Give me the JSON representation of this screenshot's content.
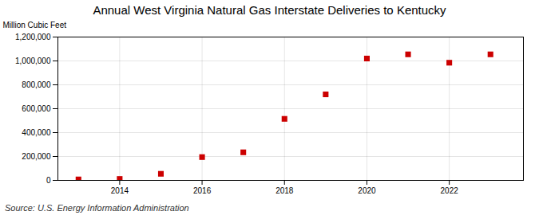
{
  "chart_data": {
    "type": "scatter",
    "title": "Annual West Virginia Natural Gas Interstate Deliveries to Kentucky",
    "ylabel": "Million Cubic Feet",
    "annotation": "Source: U.S. Energy Information Administration",
    "x": [
      2013,
      2014,
      2015,
      2016,
      2017,
      2018,
      2019,
      2020,
      2021,
      2022,
      2023
    ],
    "values": [
      8000,
      12000,
      55000,
      195000,
      235000,
      515000,
      720000,
      1020000,
      1055000,
      985000,
      1055000
    ],
    "color": "#cc0000",
    "marker": "square",
    "xlim": [
      2012.5,
      2023.8
    ],
    "xticks": [
      2014,
      2016,
      2018,
      2020,
      2022
    ],
    "ylim": [
      0,
      1200000
    ],
    "yticks": [
      0,
      {
        "value": 200000,
        "label": "200,000"
      },
      {
        "value": 400000,
        "label": "400,000"
      },
      {
        "value": 600000,
        "label": "600,000"
      },
      {
        "value": 800000,
        "label": "800,000"
      },
      {
        "value": 1000000,
        "label": "1,000,000"
      },
      {
        "value": 1200000,
        "label": "1,200,000"
      }
    ],
    "grid": true
  }
}
